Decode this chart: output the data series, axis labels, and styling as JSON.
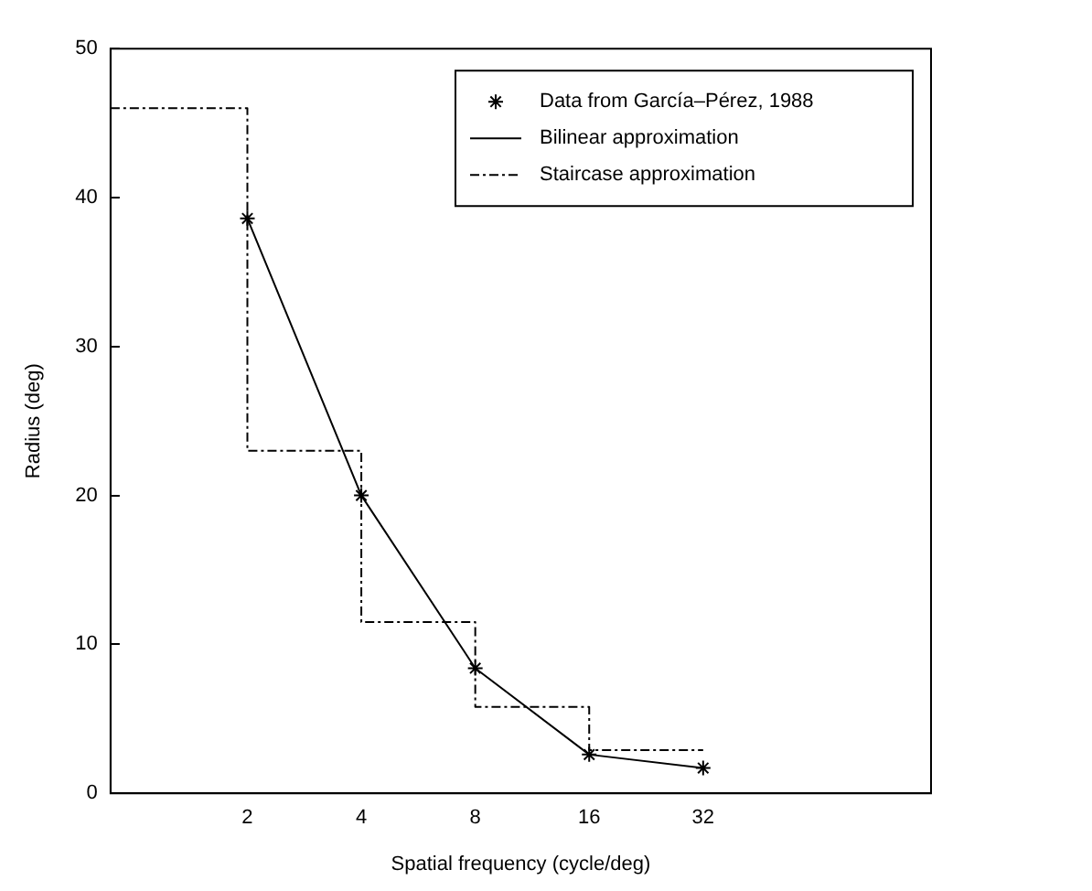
{
  "chart_data": {
    "type": "line",
    "xlabel": "Spatial frequency (cycle/deg)",
    "ylabel": "Radius (deg)",
    "xlim": [
      0.87,
      128
    ],
    "xticks": [
      2,
      4,
      8,
      16,
      32
    ],
    "ylim": [
      0,
      50
    ],
    "yticks": [
      0,
      10,
      20,
      30,
      40,
      50
    ],
    "log": "x",
    "grid": false,
    "legend": "top right",
    "series": [
      {
        "name": "Data from García–Pérez, 1988",
        "type": "scatter",
        "color": "#000000",
        "marker": "cross",
        "x": [
          2,
          4,
          8,
          16,
          32
        ],
        "values": [
          38.6,
          20,
          8.4,
          2.6,
          1.7
        ]
      },
      {
        "name": "Bilinear approximation",
        "color": "#000000",
        "marker": "none",
        "line_style": "solid",
        "x": [
          2,
          4,
          8,
          16,
          32
        ],
        "values": [
          38.6,
          20,
          8.4,
          2.6,
          1.7
        ]
      },
      {
        "name": "Staircase approximation",
        "type": "step",
        "color": "#000000",
        "marker": "none",
        "line_style": "dashed",
        "x": [
          0.87,
          2,
          4,
          8,
          16,
          32
        ],
        "values": [
          46,
          23,
          11.5,
          5.8,
          2.9,
          2.9
        ]
      }
    ]
  }
}
